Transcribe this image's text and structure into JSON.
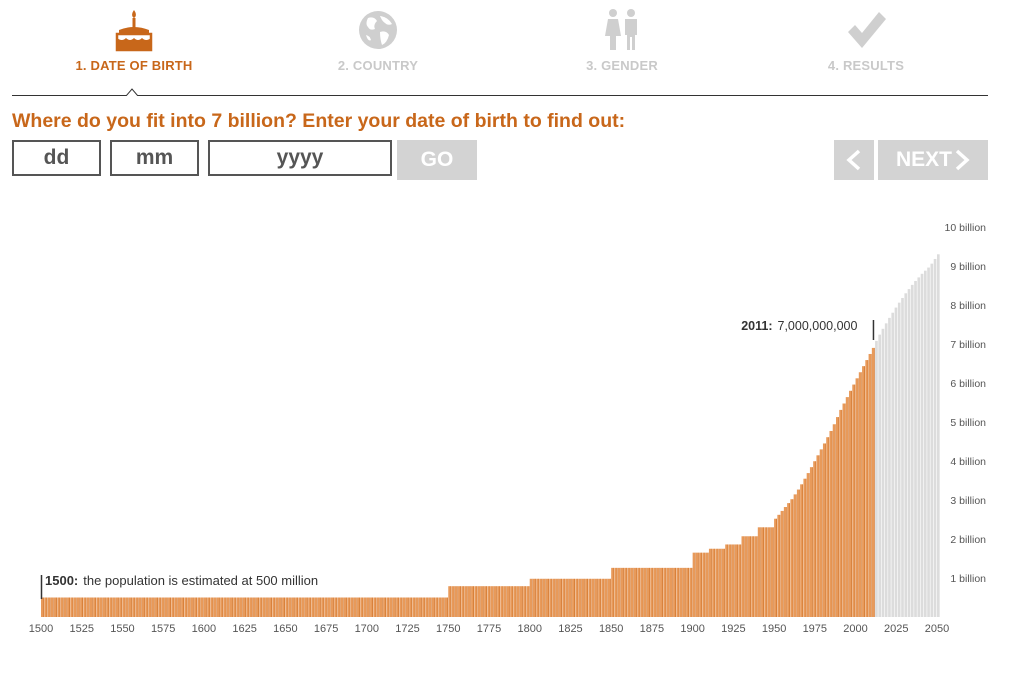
{
  "steps": [
    {
      "label": "1. DATE OF BIRTH",
      "icon": "birthday-cake-icon",
      "active": true
    },
    {
      "label": "2. COUNTRY",
      "icon": "globe-icon",
      "active": false
    },
    {
      "label": "3. GENDER",
      "icon": "people-icon",
      "active": false
    },
    {
      "label": "4. RESULTS",
      "icon": "checkmark-icon",
      "active": false
    }
  ],
  "question": "Where do you fit into 7 billion? Enter your date of birth to find out:",
  "inputs": {
    "day_placeholder": "dd",
    "month_placeholder": "mm",
    "year_placeholder": "yyyy"
  },
  "buttons": {
    "go": "GO",
    "prev": "<",
    "next": "NEXT"
  },
  "colors": {
    "accent": "#c8671a",
    "bar_past": "#e89a5a",
    "bar_past_line": "#c8671a",
    "bar_future": "#dcdcdc",
    "button_bg": "#d3d3d3",
    "inactive_text": "#c9c9c9"
  },
  "chart_data": {
    "type": "bar",
    "x_ticks": [
      1500,
      1525,
      1550,
      1575,
      1600,
      1625,
      1650,
      1675,
      1700,
      1725,
      1750,
      1775,
      1800,
      1825,
      1850,
      1875,
      1900,
      1925,
      1950,
      1975,
      2000,
      2025,
      2050
    ],
    "y_ticks": [
      "1 billion",
      "2 billion",
      "3 billion",
      "4 billion",
      "5 billion",
      "6 billion",
      "7 billion",
      "8 billion",
      "9 billion",
      "10 billion"
    ],
    "xlim": [
      1500,
      2050
    ],
    "ylim": [
      0,
      10
    ],
    "y_unit": "billion",
    "current_year": 2011,
    "series": [
      {
        "values_billion_by_year": [
          [
            1500,
            0.5
          ],
          [
            1749,
            0.5
          ],
          [
            1750,
            0.79
          ],
          [
            1799,
            0.79
          ],
          [
            1800,
            0.98
          ],
          [
            1849,
            0.98
          ],
          [
            1850,
            1.26
          ],
          [
            1899,
            1.26
          ],
          [
            1900,
            1.65
          ],
          [
            1909,
            1.65
          ],
          [
            1910,
            1.75
          ],
          [
            1919,
            1.75
          ],
          [
            1920,
            1.86
          ],
          [
            1929,
            1.86
          ],
          [
            1930,
            2.07
          ],
          [
            1939,
            2.07
          ],
          [
            1940,
            2.3
          ],
          [
            1949,
            2.3
          ],
          [
            1950,
            2.52
          ],
          [
            1955,
            2.77
          ],
          [
            1960,
            3.02
          ],
          [
            1965,
            3.33
          ],
          [
            1970,
            3.69
          ],
          [
            1975,
            4.07
          ],
          [
            1980,
            4.45
          ],
          [
            1985,
            4.85
          ],
          [
            1990,
            5.31
          ],
          [
            1995,
            5.72
          ],
          [
            2000,
            6.12
          ],
          [
            2005,
            6.51
          ],
          [
            2010,
            6.9
          ],
          [
            2011,
            7.0
          ],
          [
            2015,
            7.32
          ],
          [
            2020,
            7.67
          ],
          [
            2025,
            8.0
          ],
          [
            2030,
            8.3
          ],
          [
            2035,
            8.57
          ],
          [
            2040,
            8.8
          ],
          [
            2045,
            9.0
          ],
          [
            2050,
            9.3
          ]
        ]
      }
    ],
    "annotations": [
      {
        "year_label": "1500:",
        "text": "the population is estimated at 500 million"
      },
      {
        "year_label": "2011:",
        "text": "7,000,000,000"
      }
    ]
  }
}
